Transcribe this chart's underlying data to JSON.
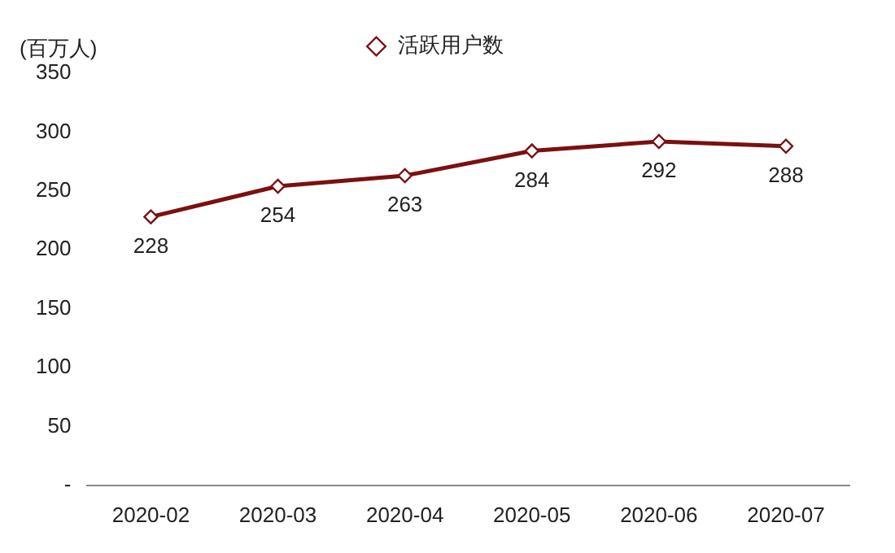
{
  "chart_data": {
    "type": "line",
    "ylabel": "(百万人)",
    "categories": [
      "2020-02",
      "2020-03",
      "2020-04",
      "2020-05",
      "2020-06",
      "2020-07"
    ],
    "series": [
      {
        "name": "活跃用户数",
        "color": "#7b1010",
        "values": [
          228,
          254,
          263,
          284,
          292,
          288
        ]
      }
    ],
    "ylim": [
      0,
      350
    ],
    "yticks": [
      {
        "value": 0,
        "label": "-"
      },
      50,
      100,
      150,
      200,
      250,
      300,
      350
    ],
    "grid": false,
    "legend": "top",
    "marker": "diamond",
    "line_style": "solid",
    "data_labels": true
  }
}
